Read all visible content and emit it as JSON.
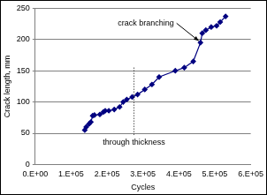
{
  "chart_data": {
    "type": "line",
    "x_label": "Cycles",
    "y_label": "Crack length, mm",
    "x": [
      138000,
      142000,
      150000,
      155000,
      160000,
      165000,
      180000,
      190000,
      195000,
      205000,
      220000,
      235000,
      245000,
      255000,
      270000,
      285000,
      305000,
      325000,
      345000,
      390000,
      415000,
      440000,
      460000,
      465000,
      475000,
      490000,
      505000,
      515000,
      530000
    ],
    "values": [
      55,
      60,
      65,
      68,
      78,
      79,
      80,
      84,
      86,
      86,
      88,
      92,
      100,
      104,
      108,
      112,
      120,
      128,
      140,
      150,
      155,
      165,
      195,
      210,
      215,
      220,
      222,
      228,
      237
    ],
    "color": "#000080",
    "marker": "diamond",
    "line_style": "solid",
    "xlim": [
      0,
      600000
    ],
    "xticks": [
      {
        "value": 0,
        "label": "0.E+00"
      },
      {
        "value": 100000,
        "label": "1.E+05"
      },
      {
        "value": 200000,
        "label": "2.E+05"
      },
      {
        "value": 300000,
        "label": "3.E+05"
      },
      {
        "value": 400000,
        "label": "4.E+05"
      },
      {
        "value": 500000,
        "label": "5.E+05"
      },
      {
        "value": 600000,
        "label": "6.E+05"
      }
    ],
    "ylim": [
      0,
      250
    ],
    "yticks": [
      0,
      50,
      100,
      150,
      200,
      250
    ],
    "grid": true,
    "annotations": [
      {
        "text": "crack branching",
        "x": 460000,
        "y": 195
      },
      {
        "text": "through thickness",
        "x": 275000
      }
    ]
  }
}
